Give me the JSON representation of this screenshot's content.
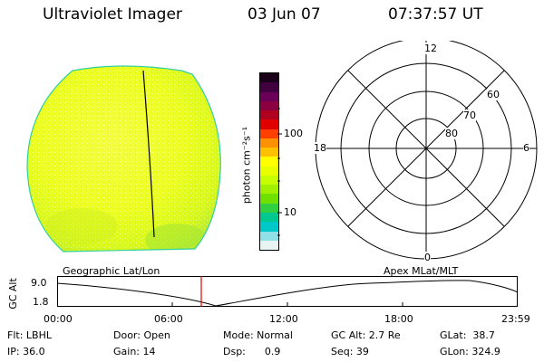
{
  "header": {
    "instrument": "Ultraviolet Imager",
    "date": "03 Jun 07",
    "time": "07:37:57 UT"
  },
  "colorbar": {
    "unit_label": "photon cm⁻²s⁻¹",
    "tick_labels": [
      "100",
      "10"
    ],
    "colors": [
      "#1a0018",
      "#400040",
      "#6a0058",
      "#8a0040",
      "#b00020",
      "#e00000",
      "#ff4000",
      "#ff9000",
      "#ffc000",
      "#ffff00",
      "#e8ff00",
      "#c8ff00",
      "#a0f000",
      "#70e000",
      "#30d040",
      "#00c890",
      "#00c8c8",
      "#90e0e8",
      "#e8f4f4"
    ]
  },
  "polar_plot": {
    "lat_labels": [
      "60",
      "70",
      "80"
    ],
    "mlt_labels": [
      "12",
      "18",
      "6",
      "0"
    ]
  },
  "timeline": {
    "left_label": "Geographic Lat/Lon",
    "right_label": "Apex MLat/MLT",
    "y_axis_label": "GC Alt",
    "y_ticks": [
      "9.0",
      "1.8"
    ],
    "x_ticks": [
      "00:00",
      "06:00",
      "12:00",
      "18:00",
      "23:59"
    ],
    "marker_color": "#e00000"
  },
  "status": {
    "flt": "Flt: LBHL",
    "door": "Door: Open",
    "mode": "Mode: Normal",
    "gc_alt": "GC Alt: 2.7 Re",
    "glat": "GLat:  38.7",
    "ip": "IP: 36.0",
    "gain": "Gain: 14",
    "dsp": "Dsp:      0.9",
    "seq": "Seq: 39",
    "glon": "GLon: 324.9"
  }
}
